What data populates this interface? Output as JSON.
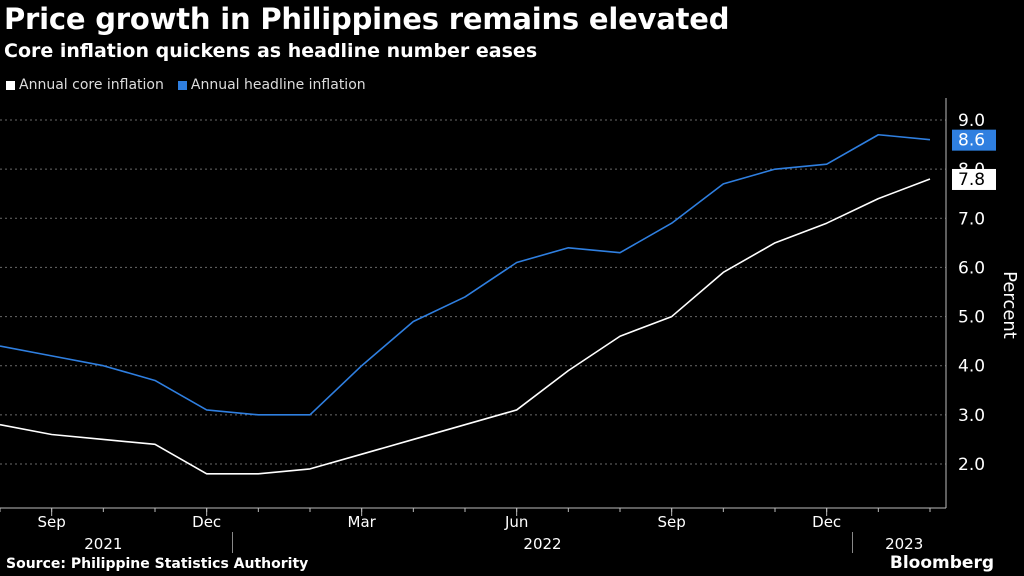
{
  "title": "Price growth in Philippines remains elevated",
  "subtitle": "Core inflation quickens as headline number eases",
  "source": "Source: Philippine Statistics Authority",
  "brand": "Bloomberg",
  "colors": {
    "core": "#ffffff",
    "headline": "#2f7fe0",
    "background": "#000000"
  },
  "chart_data": {
    "type": "line",
    "ylabel": "Percent",
    "ylim": [
      1.0,
      9.4
    ],
    "yticks": [
      2.0,
      3.0,
      4.0,
      5.0,
      6.0,
      7.0,
      8.0,
      9.0
    ],
    "ytick_labels": [
      "2.0",
      "3.0",
      "4.0",
      "5.0",
      "6.0",
      "7.0",
      "8.0",
      "9.0"
    ],
    "x": [
      "2021-08",
      "2021-09",
      "2021-10",
      "2021-11",
      "2021-12",
      "2022-01",
      "2022-02",
      "2022-03",
      "2022-04",
      "2022-05",
      "2022-06",
      "2022-07",
      "2022-08",
      "2022-09",
      "2022-10",
      "2022-11",
      "2022-12",
      "2023-01",
      "2023-02"
    ],
    "month_ticks": [
      {
        "label": "Sep",
        "x": "2021-09"
      },
      {
        "label": "Dec",
        "x": "2021-12"
      },
      {
        "label": "Mar",
        "x": "2022-03"
      },
      {
        "label": "Jun",
        "x": "2022-06"
      },
      {
        "label": "Sep",
        "x": "2022-09"
      },
      {
        "label": "Dec",
        "x": "2022-12"
      }
    ],
    "year_labels": [
      {
        "label": "2021",
        "from": "2021-08",
        "to": "2021-12"
      },
      {
        "label": "2022",
        "from": "2022-01",
        "to": "2022-12"
      },
      {
        "label": "2023",
        "from": "2023-01",
        "to": "2023-02"
      }
    ],
    "series": [
      {
        "name": "Annual core inflation",
        "key": "core",
        "values": [
          2.8,
          2.6,
          2.5,
          2.4,
          1.8,
          1.8,
          1.9,
          2.2,
          2.5,
          2.8,
          3.1,
          3.9,
          4.6,
          5.0,
          5.9,
          6.5,
          6.9,
          7.4,
          7.8
        ],
        "last_label": "7.8"
      },
      {
        "name": "Annual headline inflation",
        "key": "headline",
        "values": [
          4.4,
          4.2,
          4.0,
          3.7,
          3.1,
          3.0,
          3.0,
          4.0,
          4.9,
          5.4,
          6.1,
          6.4,
          6.3,
          6.9,
          7.7,
          8.0,
          8.1,
          8.7,
          8.6
        ],
        "last_label": "8.6"
      }
    ]
  }
}
